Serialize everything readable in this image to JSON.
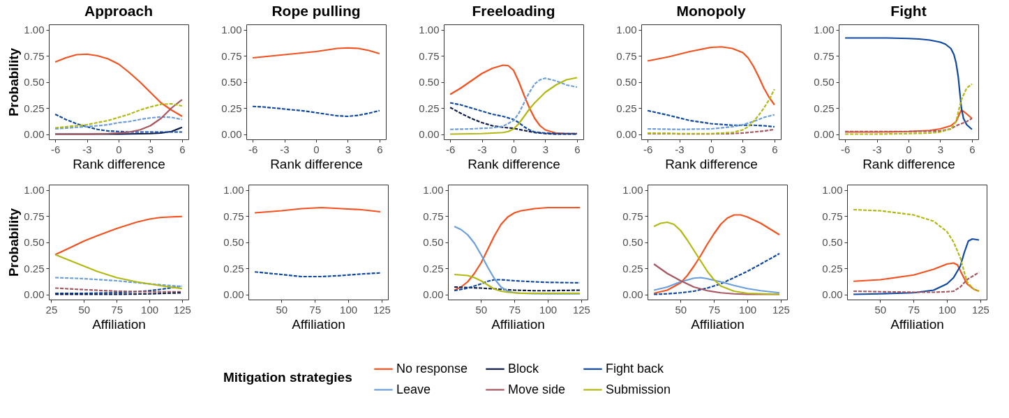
{
  "chart_data": [
    {
      "type": "line",
      "title": "Approach",
      "legend": "bottom",
      "legend_title": "Mitigation strategies",
      "xlabel": "Rank difference",
      "ylabel": "Probability",
      "xlim": [
        -6.6,
        6.6
      ],
      "xticks": [
        -6,
        -3,
        0,
        3,
        6
      ],
      "ylim": [
        -0.05,
        1.05
      ],
      "yticks": [
        {
          "value": 0,
          "label": "0.00"
        },
        {
          "value": 0.25,
          "label": "0.25"
        },
        {
          "value": 0.5,
          "label": "0.50"
        },
        {
          "value": 0.75,
          "label": "0.75"
        },
        {
          "value": 1,
          "label": "1.00"
        }
      ],
      "series": [
        {
          "name": "No response",
          "color": "#f4511e",
          "line_style": "solid",
          "x": [
            -6,
            -5,
            -4,
            -3,
            -2,
            -1,
            0,
            1,
            2,
            3,
            4,
            5,
            6
          ],
          "values": [
            0.69,
            0.73,
            0.76,
            0.765,
            0.75,
            0.72,
            0.67,
            0.59,
            0.5,
            0.4,
            0.3,
            0.23,
            0.17
          ]
        },
        {
          "name": "Block",
          "color": "#0b1a4a",
          "line_style": "solid",
          "x": [
            -6,
            0,
            3,
            4,
            5,
            6
          ],
          "values": [
            0,
            0,
            0.005,
            0.01,
            0.025,
            0.065
          ]
        },
        {
          "name": "Fight back",
          "color": "#0d47a1",
          "line_style": "dashed",
          "x": [
            -6,
            -5,
            -4,
            -3,
            -2,
            -1,
            0,
            1,
            2,
            3,
            4,
            5,
            6
          ],
          "values": [
            0.19,
            0.14,
            0.1,
            0.07,
            0.045,
            0.03,
            0.025,
            0.02,
            0.02,
            0.02,
            0.02,
            0.02,
            0.02
          ]
        },
        {
          "name": "Leave",
          "color": "#6a9edb",
          "line_style": "dashed",
          "x": [
            -6,
            -5,
            -4,
            -3,
            -2,
            -1,
            0,
            1,
            2,
            3,
            4,
            5,
            6
          ],
          "values": [
            0.05,
            0.058,
            0.065,
            0.072,
            0.08,
            0.09,
            0.11,
            0.12,
            0.14,
            0.155,
            0.165,
            0.16,
            0.14
          ]
        },
        {
          "name": "Move side",
          "color": "#a8565f",
          "line_style": "solid",
          "x": [
            -6,
            -3,
            -1,
            0,
            1,
            2,
            3,
            4,
            5,
            6
          ],
          "values": [
            0,
            0,
            0.005,
            0.01,
            0.02,
            0.04,
            0.08,
            0.15,
            0.25,
            0.33
          ]
        },
        {
          "name": "Submission",
          "color": "#b2b812",
          "line_style": "dashed",
          "x": [
            -6,
            -5,
            -4,
            -3,
            -2,
            -1,
            0,
            1,
            2,
            3,
            4,
            5,
            6
          ],
          "values": [
            0.06,
            0.07,
            0.08,
            0.09,
            0.11,
            0.13,
            0.16,
            0.19,
            0.23,
            0.26,
            0.285,
            0.29,
            0.27
          ]
        }
      ]
    },
    {
      "type": "line",
      "title": "Rope pulling",
      "xlabel": "Rank difference",
      "xlim": [
        -6.6,
        6.6
      ],
      "xticks": [
        -6,
        -3,
        0,
        3,
        6
      ],
      "ylim": [
        -0.05,
        1.05
      ],
      "yticks": [
        {
          "value": 0,
          "label": "0.00"
        },
        {
          "value": 0.25,
          "label": "0.25"
        },
        {
          "value": 0.5,
          "label": "0.50"
        },
        {
          "value": 0.75,
          "label": "0.75"
        },
        {
          "value": 1,
          "label": "1.00"
        }
      ],
      "series": [
        {
          "name": "No response",
          "color": "#f4511e",
          "line_style": "solid",
          "x": [
            -6,
            -5,
            -4,
            -3,
            -2,
            -1,
            0,
            1,
            2,
            3,
            4,
            5,
            6
          ],
          "values": [
            0.73,
            0.74,
            0.75,
            0.76,
            0.77,
            0.78,
            0.79,
            0.805,
            0.82,
            0.825,
            0.82,
            0.8,
            0.77
          ]
        },
        {
          "name": "Fight back",
          "color": "#0d47a1",
          "line_style": "dashed",
          "x": [
            -6,
            -5,
            -4,
            -3,
            -2,
            -1,
            0,
            1,
            2,
            3,
            4,
            5,
            6
          ],
          "values": [
            0.265,
            0.26,
            0.25,
            0.24,
            0.23,
            0.22,
            0.205,
            0.19,
            0.175,
            0.17,
            0.18,
            0.2,
            0.225
          ]
        }
      ]
    },
    {
      "type": "line",
      "title": "Freeloading",
      "xlabel": "Rank difference",
      "xlim": [
        -6.6,
        6.6
      ],
      "xticks": [
        -6,
        -3,
        0,
        3,
        6
      ],
      "ylim": [
        -0.05,
        1.05
      ],
      "yticks": [
        {
          "value": 0,
          "label": "0.00"
        },
        {
          "value": 0.25,
          "label": "0.25"
        },
        {
          "value": 0.5,
          "label": "0.50"
        },
        {
          "value": 0.75,
          "label": "0.75"
        },
        {
          "value": 1,
          "label": "1.00"
        }
      ],
      "series": [
        {
          "name": "No response",
          "color": "#f4511e",
          "line_style": "solid",
          "x": [
            -6,
            -5,
            -4,
            -3,
            -2,
            -1,
            -0.5,
            0,
            0.5,
            1,
            1.5,
            2,
            2.5,
            3,
            4,
            5,
            6
          ],
          "values": [
            0.38,
            0.44,
            0.51,
            0.58,
            0.63,
            0.66,
            0.655,
            0.61,
            0.5,
            0.37,
            0.25,
            0.15,
            0.08,
            0.04,
            0.01,
            0.005,
            0.005
          ]
        },
        {
          "name": "Block",
          "color": "#0b1a4a",
          "line_style": "dashed",
          "x": [
            -6,
            -5,
            -4,
            -3,
            -2,
            -1,
            0,
            1,
            2,
            3,
            4,
            6
          ],
          "values": [
            0.255,
            0.2,
            0.15,
            0.11,
            0.08,
            0.065,
            0.055,
            0.035,
            0.015,
            0.005,
            0,
            0
          ]
        },
        {
          "name": "Fight back",
          "color": "#0d47a1",
          "line_style": "dashed",
          "x": [
            -6,
            -5,
            -4,
            -3,
            -2,
            -1,
            0,
            0.5,
            1,
            1.5,
            2,
            3,
            4,
            6
          ],
          "values": [
            0.3,
            0.28,
            0.25,
            0.22,
            0.19,
            0.17,
            0.14,
            0.11,
            0.07,
            0.04,
            0.02,
            0.01,
            0.005,
            0.005
          ]
        },
        {
          "name": "Leave",
          "color": "#6a9edb",
          "line_style": "dashed",
          "x": [
            -6,
            -4,
            -2,
            -1,
            0,
            0.5,
            1,
            1.5,
            2,
            2.5,
            3,
            4,
            5,
            6
          ],
          "values": [
            0.045,
            0.05,
            0.06,
            0.075,
            0.13,
            0.2,
            0.3,
            0.4,
            0.48,
            0.52,
            0.535,
            0.51,
            0.47,
            0.45
          ]
        },
        {
          "name": "Submission",
          "color": "#b2b812",
          "line_style": "solid",
          "x": [
            -6,
            -3,
            -1,
            -0.5,
            0,
            0.5,
            1,
            1.5,
            2,
            3,
            4,
            5,
            6
          ],
          "values": [
            0,
            0.005,
            0.015,
            0.025,
            0.05,
            0.1,
            0.17,
            0.24,
            0.3,
            0.4,
            0.47,
            0.52,
            0.54
          ]
        }
      ]
    },
    {
      "type": "line",
      "title": "Monopoly",
      "xlabel": "Rank difference",
      "xlim": [
        -6.6,
        6.6
      ],
      "xticks": [
        -6,
        -3,
        0,
        3,
        6
      ],
      "ylim": [
        -0.05,
        1.05
      ],
      "yticks": [
        {
          "value": 0,
          "label": "0.00"
        },
        {
          "value": 0.25,
          "label": "0.25"
        },
        {
          "value": 0.5,
          "label": "0.50"
        },
        {
          "value": 0.75,
          "label": "0.75"
        },
        {
          "value": 1,
          "label": "1.00"
        }
      ],
      "series": [
        {
          "name": "No response",
          "color": "#f4511e",
          "line_style": "solid",
          "x": [
            -6,
            -4,
            -2,
            0,
            1,
            2,
            3,
            3.5,
            4,
            4.5,
            5,
            5.5,
            6
          ],
          "values": [
            0.7,
            0.74,
            0.79,
            0.83,
            0.835,
            0.82,
            0.78,
            0.73,
            0.65,
            0.55,
            0.44,
            0.35,
            0.28
          ]
        },
        {
          "name": "Fight back",
          "color": "#0d47a1",
          "line_style": "dashed",
          "x": [
            -6,
            -4,
            -2,
            0,
            2,
            3,
            4,
            5,
            6
          ],
          "values": [
            0.225,
            0.18,
            0.13,
            0.1,
            0.085,
            0.085,
            0.085,
            0.08,
            0.07
          ]
        },
        {
          "name": "Leave",
          "color": "#6a9edb",
          "line_style": "dashed",
          "x": [
            -6,
            -3,
            0,
            2,
            3,
            4,
            5,
            6
          ],
          "values": [
            0.05,
            0.045,
            0.05,
            0.07,
            0.09,
            0.12,
            0.16,
            0.185
          ]
        },
        {
          "name": "Move side",
          "color": "#a8565f",
          "line_style": "dashed",
          "x": [
            -6,
            -3,
            0,
            2,
            3,
            4,
            5,
            6
          ],
          "values": [
            0.005,
            0.003,
            0.003,
            0.005,
            0.01,
            0.02,
            0.03,
            0.045
          ]
        },
        {
          "name": "Submission",
          "color": "#b2b812",
          "line_style": "dashed",
          "x": [
            -6,
            -3,
            0,
            2,
            3,
            3.5,
            4,
            4.5,
            5,
            5.5,
            6
          ],
          "values": [
            0.01,
            0.005,
            0.005,
            0.015,
            0.04,
            0.07,
            0.12,
            0.18,
            0.25,
            0.33,
            0.43
          ]
        }
      ]
    },
    {
      "type": "line",
      "title": "Fight",
      "xlabel": "Rank difference",
      "xlim": [
        -6.6,
        6.6
      ],
      "xticks": [
        -6,
        -3,
        0,
        3,
        6
      ],
      "ylim": [
        -0.05,
        1.05
      ],
      "yticks": [
        {
          "value": 0,
          "label": "0.00"
        },
        {
          "value": 0.25,
          "label": "0.25"
        },
        {
          "value": 0.5,
          "label": "0.50"
        },
        {
          "value": 0.75,
          "label": "0.75"
        },
        {
          "value": 1,
          "label": "1.00"
        }
      ],
      "series": [
        {
          "name": "No response",
          "color": "#f4511e",
          "line_style": "solid",
          "x": [
            -6,
            -3,
            0,
            2,
            3,
            4,
            4.5,
            4.8,
            5,
            5.3,
            6
          ],
          "values": [
            0.02,
            0.02,
            0.025,
            0.035,
            0.05,
            0.08,
            0.12,
            0.19,
            0.23,
            0.21,
            0.15
          ]
        },
        {
          "name": "Fight back",
          "color": "#0d47a1",
          "line_style": "solid",
          "x": [
            -6,
            -4,
            -2,
            0,
            1,
            2,
            3,
            3.5,
            4,
            4.3,
            4.5,
            4.7,
            4.9,
            5,
            5.2,
            5.5,
            6
          ],
          "values": [
            0.92,
            0.92,
            0.92,
            0.915,
            0.91,
            0.9,
            0.88,
            0.86,
            0.82,
            0.76,
            0.68,
            0.55,
            0.35,
            0.25,
            0.15,
            0.09,
            0.045
          ]
        },
        {
          "name": "Move side",
          "color": "#a8565f",
          "line_style": "dashed",
          "x": [
            -6,
            -3,
            0,
            3,
            4,
            4.5,
            5,
            5.5,
            6
          ],
          "values": [
            0.025,
            0.025,
            0.025,
            0.03,
            0.05,
            0.08,
            0.1,
            0.12,
            0.15
          ]
        },
        {
          "name": "Submission",
          "color": "#b2b812",
          "line_style": "dashed",
          "x": [
            -6,
            -3,
            0,
            2,
            3,
            4,
            4.5,
            4.8,
            5,
            5.5,
            6
          ],
          "values": [
            0,
            0,
            0.005,
            0.01,
            0.02,
            0.05,
            0.12,
            0.25,
            0.33,
            0.44,
            0.48
          ]
        }
      ]
    },
    {
      "type": "line",
      "xlabel": "Affiliation",
      "ylabel": "Probability",
      "xlim": [
        23.15,
        129.85
      ],
      "xticks": [
        25,
        50,
        75,
        100,
        125
      ],
      "ylim": [
        -0.05,
        1.05
      ],
      "yticks": [
        {
          "value": 0,
          "label": "0.00"
        },
        {
          "value": 0.25,
          "label": "0.25"
        },
        {
          "value": 0.5,
          "label": "0.50"
        },
        {
          "value": 0.75,
          "label": "0.75"
        },
        {
          "value": 1,
          "label": "1.00"
        }
      ],
      "series": [
        {
          "name": "No response",
          "color": "#f4511e",
          "line_style": "solid",
          "x": [
            28,
            40,
            50,
            60,
            75,
            90,
            100,
            108,
            115,
            125
          ],
          "values": [
            0.38,
            0.45,
            0.51,
            0.56,
            0.63,
            0.69,
            0.72,
            0.735,
            0.74,
            0.745
          ]
        },
        {
          "name": "Fight back",
          "color": "#0d47a1",
          "line_style": "dashed",
          "x": [
            28,
            50,
            75,
            90,
            100,
            110,
            125
          ],
          "values": [
            0.01,
            0.01,
            0.015,
            0.025,
            0.035,
            0.05,
            0.08
          ]
        },
        {
          "name": "Leave",
          "color": "#6a9edb",
          "line_style": "dashed",
          "x": [
            28,
            50,
            75,
            100,
            125
          ],
          "values": [
            0.16,
            0.15,
            0.13,
            0.1,
            0.075
          ]
        },
        {
          "name": "Move side",
          "color": "#a8565f",
          "line_style": "dashed",
          "x": [
            28,
            50,
            75,
            100,
            125
          ],
          "values": [
            0.06,
            0.045,
            0.03,
            0.025,
            0.025
          ]
        },
        {
          "name": "Submission",
          "color": "#b2b812",
          "line_style": "solid",
          "x": [
            28,
            40,
            50,
            60,
            75,
            90,
            100,
            110,
            125
          ],
          "values": [
            0.38,
            0.32,
            0.27,
            0.22,
            0.16,
            0.12,
            0.1,
            0.08,
            0.055
          ]
        },
        {
          "name": "Block",
          "color": "#0b1a4a",
          "line_style": "dashed",
          "x": [
            28,
            50,
            75,
            100,
            125
          ],
          "values": [
            0,
            0,
            0,
            0.005,
            0.015
          ]
        }
      ]
    },
    {
      "type": "line",
      "xlabel": "Affiliation",
      "xlim": [
        25.25,
        129.75
      ],
      "xticks": [
        50,
        75,
        100,
        125
      ],
      "ylim": [
        -0.05,
        1.05
      ],
      "yticks": [
        {
          "value": 0,
          "label": "0.00"
        },
        {
          "value": 0.25,
          "label": "0.25"
        },
        {
          "value": 0.5,
          "label": "0.50"
        },
        {
          "value": 0.75,
          "label": "0.75"
        },
        {
          "value": 1,
          "label": "1.00"
        }
      ],
      "series": [
        {
          "name": "No response",
          "color": "#f4511e",
          "line_style": "solid",
          "x": [
            30,
            50,
            65,
            80,
            95,
            110,
            124
          ],
          "values": [
            0.78,
            0.8,
            0.82,
            0.83,
            0.82,
            0.81,
            0.79
          ]
        },
        {
          "name": "Fight back",
          "color": "#0d47a1",
          "line_style": "dashed",
          "x": [
            30,
            50,
            65,
            80,
            95,
            110,
            124
          ],
          "values": [
            0.215,
            0.19,
            0.17,
            0.17,
            0.18,
            0.195,
            0.205
          ]
        }
      ]
    },
    {
      "type": "line",
      "xlabel": "Affiliation",
      "xlim": [
        25.25,
        129.75
      ],
      "xticks": [
        50,
        75,
        100,
        125
      ],
      "ylim": [
        -0.05,
        1.05
      ],
      "yticks": [
        {
          "value": 0,
          "label": "0.00"
        },
        {
          "value": 0.25,
          "label": "0.25"
        },
        {
          "value": 0.5,
          "label": "0.50"
        },
        {
          "value": 0.75,
          "label": "0.75"
        },
        {
          "value": 1,
          "label": "1.00"
        }
      ],
      "series": [
        {
          "name": "No response",
          "color": "#f4511e",
          "line_style": "solid",
          "x": [
            30,
            35,
            40,
            45,
            50,
            55,
            60,
            65,
            70,
            75,
            80,
            90,
            100,
            110,
            124
          ],
          "values": [
            0.04,
            0.07,
            0.12,
            0.2,
            0.3,
            0.43,
            0.56,
            0.67,
            0.74,
            0.78,
            0.8,
            0.82,
            0.83,
            0.83,
            0.83
          ]
        },
        {
          "name": "Block",
          "color": "#0b1a4a",
          "line_style": "dashed",
          "x": [
            30,
            50,
            75,
            90,
            100,
            124
          ],
          "values": [
            0.07,
            0.06,
            0.04,
            0.035,
            0.035,
            0.04
          ]
        },
        {
          "name": "Fight back",
          "color": "#0d47a1",
          "line_style": "dashed",
          "x": [
            30,
            40,
            50,
            55,
            60,
            65,
            75,
            90,
            100,
            124
          ],
          "values": [
            0.035,
            0.06,
            0.1,
            0.125,
            0.14,
            0.14,
            0.13,
            0.12,
            0.115,
            0.11
          ]
        },
        {
          "name": "Leave",
          "color": "#6a9edb",
          "line_style": "solid",
          "x": [
            30,
            35,
            40,
            45,
            50,
            55,
            60,
            65,
            70,
            75,
            80,
            100,
            124
          ],
          "values": [
            0.65,
            0.62,
            0.57,
            0.49,
            0.38,
            0.26,
            0.15,
            0.07,
            0.03,
            0.015,
            0.01,
            0.005,
            0.005
          ]
        },
        {
          "name": "Submission",
          "color": "#b2b812",
          "line_style": "solid",
          "x": [
            30,
            40,
            45,
            50,
            55,
            60,
            65,
            70,
            75,
            80,
            100,
            124
          ],
          "values": [
            0.19,
            0.18,
            0.16,
            0.13,
            0.09,
            0.05,
            0.03,
            0.02,
            0.015,
            0.01,
            0.01,
            0.01
          ]
        }
      ]
    },
    {
      "type": "line",
      "xlabel": "Affiliation",
      "xlim": [
        25.25,
        129.75
      ],
      "xticks": [
        50,
        75,
        100,
        125
      ],
      "ylim": [
        -0.05,
        1.05
      ],
      "yticks": [
        {
          "value": 0,
          "label": "0.00"
        },
        {
          "value": 0.25,
          "label": "0.25"
        },
        {
          "value": 0.5,
          "label": "0.50"
        },
        {
          "value": 0.75,
          "label": "0.75"
        },
        {
          "value": 1,
          "label": "1.00"
        }
      ],
      "series": [
        {
          "name": "No response",
          "color": "#f4511e",
          "line_style": "solid",
          "x": [
            30,
            40,
            50,
            55,
            60,
            65,
            70,
            75,
            80,
            85,
            90,
            95,
            100,
            110,
            124
          ],
          "values": [
            0.01,
            0.04,
            0.11,
            0.18,
            0.27,
            0.37,
            0.48,
            0.58,
            0.67,
            0.73,
            0.76,
            0.76,
            0.74,
            0.68,
            0.57
          ]
        },
        {
          "name": "Fight back",
          "color": "#0d47a1",
          "line_style": "dashed",
          "x": [
            30,
            40,
            50,
            60,
            70,
            80,
            90,
            100,
            110,
            124
          ],
          "values": [
            0,
            0.005,
            0.015,
            0.03,
            0.06,
            0.1,
            0.16,
            0.22,
            0.29,
            0.39
          ]
        },
        {
          "name": "Leave",
          "color": "#6a9edb",
          "line_style": "solid",
          "x": [
            30,
            40,
            50,
            60,
            65,
            70,
            80,
            90,
            100,
            110,
            124
          ],
          "values": [
            0.04,
            0.07,
            0.12,
            0.155,
            0.16,
            0.15,
            0.12,
            0.085,
            0.055,
            0.035,
            0.015
          ]
        },
        {
          "name": "Move side",
          "color": "#a8565f",
          "line_style": "solid",
          "x": [
            30,
            40,
            50,
            60,
            70,
            80,
            90,
            100,
            124
          ],
          "values": [
            0.29,
            0.2,
            0.13,
            0.07,
            0.035,
            0.015,
            0.005,
            0,
            0
          ]
        },
        {
          "name": "Submission",
          "color": "#b2b812",
          "line_style": "solid",
          "x": [
            30,
            35,
            40,
            45,
            50,
            55,
            60,
            65,
            70,
            75,
            80,
            90,
            100,
            124
          ],
          "values": [
            0.65,
            0.68,
            0.69,
            0.67,
            0.61,
            0.52,
            0.42,
            0.32,
            0.22,
            0.14,
            0.08,
            0.03,
            0.01,
            0
          ]
        }
      ]
    },
    {
      "type": "line",
      "xlabel": "Affiliation",
      "xlim": [
        25.25,
        129.75
      ],
      "xticks": [
        50,
        75,
        100,
        125
      ],
      "ylim": [
        -0.05,
        1.05
      ],
      "yticks": [
        {
          "value": 0,
          "label": "0.00"
        },
        {
          "value": 0.25,
          "label": "0.25"
        },
        {
          "value": 0.5,
          "label": "0.50"
        },
        {
          "value": 0.75,
          "label": "0.75"
        },
        {
          "value": 1,
          "label": "1.00"
        }
      ],
      "series": [
        {
          "name": "No response",
          "color": "#f4511e",
          "line_style": "solid",
          "x": [
            30,
            50,
            75,
            90,
            100,
            105,
            108,
            111,
            115,
            120,
            124
          ],
          "values": [
            0.125,
            0.14,
            0.185,
            0.24,
            0.29,
            0.3,
            0.28,
            0.2,
            0.1,
            0.05,
            0.03
          ]
        },
        {
          "name": "Fight back",
          "color": "#0d47a1",
          "line_style": "solid",
          "x": [
            30,
            50,
            75,
            90,
            100,
            105,
            110,
            113,
            116,
            119,
            124
          ],
          "values": [
            0,
            0.005,
            0.015,
            0.04,
            0.1,
            0.16,
            0.27,
            0.4,
            0.51,
            0.53,
            0.52
          ]
        },
        {
          "name": "Move side",
          "color": "#a8565f",
          "line_style": "dashed",
          "x": [
            30,
            50,
            75,
            90,
            100,
            105,
            110,
            115,
            120,
            124
          ],
          "values": [
            0.03,
            0.025,
            0.02,
            0.02,
            0.025,
            0.03,
            0.07,
            0.14,
            0.18,
            0.21
          ]
        },
        {
          "name": "Submission",
          "color": "#b2b812",
          "line_style": "dashed",
          "x": [
            30,
            50,
            75,
            90,
            100,
            105,
            110,
            115,
            120,
            124
          ],
          "values": [
            0.81,
            0.8,
            0.76,
            0.7,
            0.6,
            0.5,
            0.35,
            0.12,
            0.05,
            0.03
          ]
        }
      ]
    }
  ]
}
